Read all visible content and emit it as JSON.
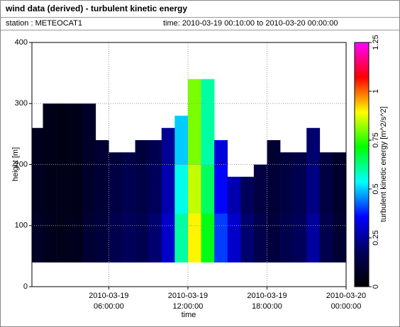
{
  "chart_data": {
    "type": "heatmap",
    "title": "wind data (derived) - turbulent kinetic energy",
    "station": "station : METEOCAT1",
    "time_range": "time: 2010-03-19 00:10:00 to 2010-03-20 00:00:00",
    "xlabel": "time",
    "ylabel": "height [m]",
    "colorbar_label": "turbulent kinetic energy [m^2/s^2]",
    "xlim": [
      "2010-03-19 00:10:00",
      "2010-03-20 00:00:00"
    ],
    "xticks": [
      "2010-03-19 06:00:00",
      "2010-03-19 12:00:00",
      "2010-03-19 18:00:00",
      "2010-03-20 00:00:00"
    ],
    "ylim": [
      0,
      400
    ],
    "yticks": [
      0,
      100,
      200,
      300,
      400
    ],
    "zlim": [
      0,
      1.25
    ],
    "zticks": [
      0,
      0.25,
      0.5,
      0.75,
      1,
      1.25
    ],
    "colormap": [
      "#000000",
      "#00005a",
      "#0000ff",
      "#00ffff",
      "#00ff00",
      "#ffff00",
      "#ff0000",
      "#ff00ff"
    ],
    "grid": true,
    "x": [
      "2010-03-19 00:00:00",
      "2010-03-19 01:00:00",
      "2010-03-19 02:00:00",
      "2010-03-19 03:00:00",
      "2010-03-19 04:00:00",
      "2010-03-19 05:00:00",
      "2010-03-19 06:00:00",
      "2010-03-19 07:00:00",
      "2010-03-19 08:00:00",
      "2010-03-19 09:00:00",
      "2010-03-19 10:00:00",
      "2010-03-19 11:00:00",
      "2010-03-19 12:00:00",
      "2010-03-19 13:00:00",
      "2010-03-19 14:00:00",
      "2010-03-19 15:00:00",
      "2010-03-19 16:00:00",
      "2010-03-19 17:00:00",
      "2010-03-19 18:00:00",
      "2010-03-19 19:00:00",
      "2010-03-19 20:00:00",
      "2010-03-19 21:00:00",
      "2010-03-19 22:00:00",
      "2010-03-19 23:00:00"
    ],
    "y": [
      40,
      60,
      80,
      100,
      120,
      140,
      160,
      180,
      200,
      220,
      240,
      260,
      280,
      300,
      320
    ],
    "z": [
      [
        0.08,
        0.06,
        0.05,
        0.06,
        0.1,
        0.12,
        0.15,
        0.18,
        0.16,
        0.2,
        0.3,
        0.6,
        0.9,
        0.7,
        0.4,
        0.3,
        0.2,
        0.15,
        0.12,
        0.15,
        0.18,
        0.25,
        0.15,
        0.1
      ],
      [
        0.08,
        0.06,
        0.05,
        0.06,
        0.1,
        0.12,
        0.15,
        0.18,
        0.16,
        0.2,
        0.3,
        0.6,
        0.9,
        0.7,
        0.4,
        0.3,
        0.2,
        0.15,
        0.12,
        0.15,
        0.18,
        0.25,
        0.15,
        0.1
      ],
      [
        0.08,
        0.06,
        0.05,
        0.06,
        0.1,
        0.12,
        0.15,
        0.18,
        0.16,
        0.2,
        0.3,
        0.6,
        0.9,
        0.7,
        0.4,
        0.3,
        0.2,
        0.15,
        0.12,
        0.15,
        0.18,
        0.25,
        0.15,
        0.1
      ],
      [
        0.08,
        0.06,
        0.05,
        0.06,
        0.1,
        0.12,
        0.15,
        0.18,
        0.16,
        0.2,
        0.3,
        0.6,
        0.9,
        0.7,
        0.4,
        0.3,
        0.2,
        0.15,
        0.12,
        0.15,
        0.18,
        0.25,
        0.15,
        0.1
      ],
      [
        0.07,
        0.05,
        0.05,
        0.05,
        0.09,
        0.11,
        0.13,
        0.16,
        0.14,
        0.18,
        0.27,
        0.55,
        0.85,
        0.65,
        0.36,
        0.27,
        0.18,
        0.13,
        0.11,
        0.13,
        0.16,
        0.22,
        0.13,
        0.09
      ],
      [
        0.07,
        0.05,
        0.05,
        0.05,
        0.09,
        0.11,
        0.13,
        0.16,
        0.14,
        0.18,
        0.27,
        0.55,
        0.85,
        0.65,
        0.36,
        0.27,
        0.18,
        0.13,
        0.11,
        0.13,
        0.16,
        0.22,
        0.13,
        0.09
      ],
      [
        0.07,
        0.05,
        0.05,
        0.05,
        0.09,
        0.11,
        0.13,
        0.16,
        0.14,
        0.18,
        0.27,
        0.55,
        0.85,
        0.65,
        0.36,
        0.27,
        0.18,
        0.13,
        0.11,
        0.13,
        0.16,
        0.22,
        0.13,
        0.09
      ],
      [
        0.07,
        0.05,
        0.05,
        0.05,
        0.09,
        0.11,
        0.13,
        0.16,
        0.14,
        0.18,
        0.27,
        0.55,
        0.85,
        0.65,
        0.36,
        null,
        null,
        0.13,
        0.11,
        0.13,
        0.16,
        0.22,
        0.13,
        0.09
      ],
      [
        0.06,
        0.05,
        0.04,
        0.05,
        0.08,
        0.1,
        0.12,
        0.14,
        0.12,
        0.16,
        0.24,
        0.5,
        0.8,
        0.6,
        0.32,
        null,
        null,
        null,
        0.1,
        0.12,
        0.14,
        0.2,
        0.12,
        0.08
      ],
      [
        0.06,
        0.05,
        0.04,
        0.05,
        0.08,
        0.1,
        null,
        null,
        0.12,
        0.16,
        0.24,
        0.5,
        0.8,
        0.6,
        0.32,
        null,
        null,
        null,
        0.1,
        null,
        null,
        0.2,
        null,
        null
      ],
      [
        0.06,
        0.05,
        0.04,
        0.05,
        0.08,
        null,
        null,
        null,
        null,
        null,
        0.24,
        0.5,
        0.8,
        0.6,
        null,
        null,
        null,
        null,
        null,
        null,
        null,
        0.2,
        null,
        null
      ],
      [
        null,
        0.05,
        0.04,
        0.05,
        0.08,
        null,
        null,
        null,
        null,
        null,
        null,
        0.5,
        0.8,
        0.6,
        null,
        null,
        null,
        null,
        null,
        null,
        null,
        null,
        null,
        null
      ],
      [
        null,
        0.05,
        0.04,
        0.05,
        0.08,
        null,
        null,
        null,
        null,
        null,
        null,
        null,
        0.8,
        0.6,
        null,
        null,
        null,
        null,
        null,
        null,
        null,
        null,
        null,
        null
      ],
      [
        null,
        null,
        null,
        null,
        null,
        null,
        null,
        null,
        null,
        null,
        null,
        null,
        0.8,
        0.6,
        null,
        null,
        null,
        null,
        null,
        null,
        null,
        null,
        null,
        null
      ],
      [
        null,
        null,
        null,
        null,
        null,
        null,
        null,
        null,
        null,
        null,
        null,
        null,
        0.8,
        0.6,
        null,
        null,
        null,
        null,
        null,
        null,
        null,
        null,
        null,
        null
      ]
    ]
  }
}
